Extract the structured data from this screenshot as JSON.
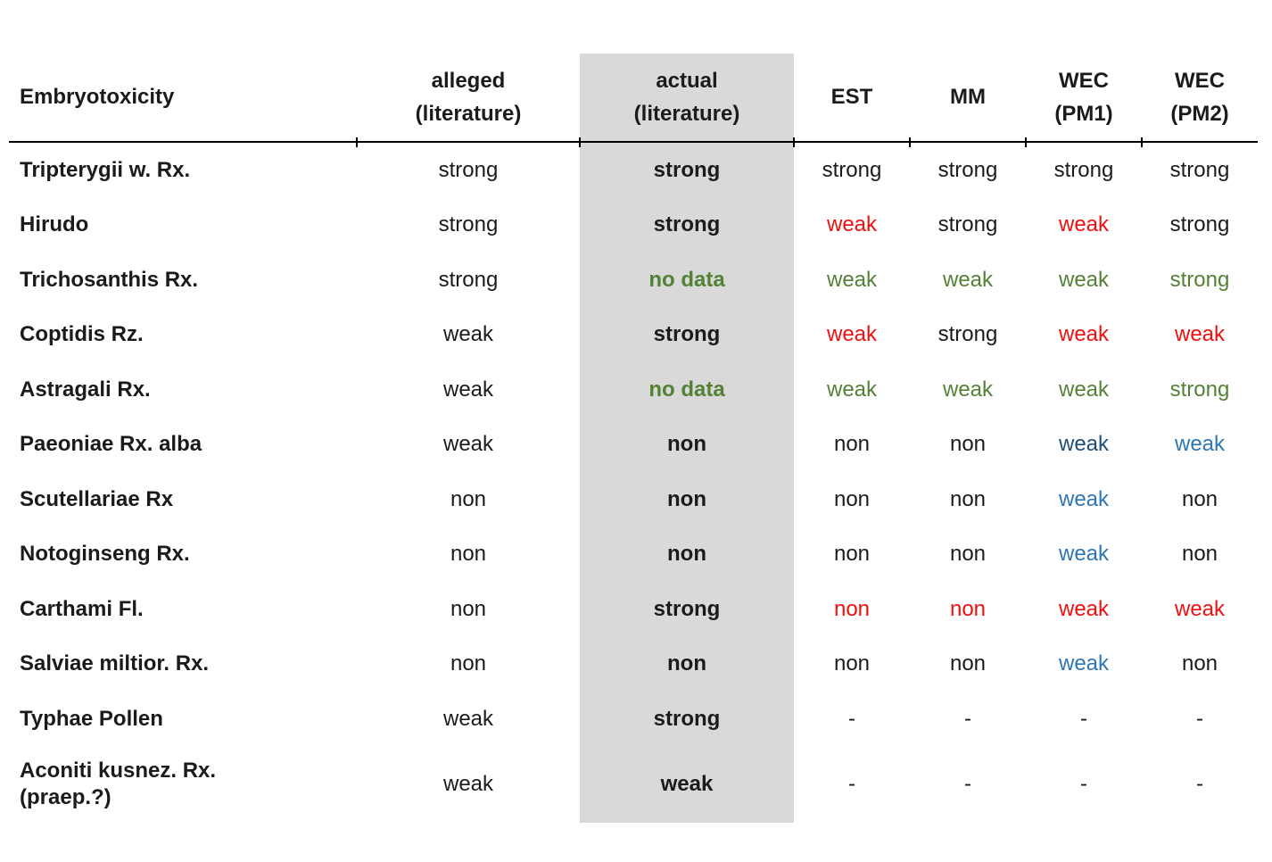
{
  "colors": {
    "black": "#1b1b1b",
    "red": "#f01010",
    "green": "#538135",
    "blue": "#2e75b6",
    "darkblue": "#1f4e79",
    "column_highlight": "#d9d9d9"
  },
  "header": {
    "col_name": "Embryotoxicity",
    "alleged": [
      "alleged",
      "(literature)"
    ],
    "actual": [
      "actual",
      "(literature)"
    ],
    "est": "EST",
    "mm": "MM",
    "wec1": [
      "WEC",
      "(PM1)"
    ],
    "wec2": [
      "WEC",
      "(PM2)"
    ]
  },
  "rows": [
    {
      "name": "Tripterygii w. Rx.",
      "name2": "",
      "alleged": "strong",
      "actual": {
        "t": "strong",
        "c": "black"
      },
      "est": {
        "t": "strong",
        "c": "black"
      },
      "mm": {
        "t": "strong",
        "c": "black"
      },
      "wec1": {
        "t": "strong",
        "c": "black"
      },
      "wec2": {
        "t": "strong",
        "c": "black"
      }
    },
    {
      "name": "Hirudo",
      "name2": "",
      "alleged": "strong",
      "actual": {
        "t": "strong",
        "c": "black"
      },
      "est": {
        "t": "weak",
        "c": "red"
      },
      "mm": {
        "t": "strong",
        "c": "black"
      },
      "wec1": {
        "t": "weak",
        "c": "red"
      },
      "wec2": {
        "t": "strong",
        "c": "black"
      }
    },
    {
      "name": "Trichosanthis Rx.",
      "name2": "",
      "alleged": "strong",
      "actual": {
        "t": "no data",
        "c": "green"
      },
      "est": {
        "t": "weak",
        "c": "green"
      },
      "mm": {
        "t": "weak",
        "c": "green"
      },
      "wec1": {
        "t": "weak",
        "c": "green"
      },
      "wec2": {
        "t": "strong",
        "c": "green"
      }
    },
    {
      "name": "Coptidis Rz.",
      "name2": "",
      "alleged": "weak",
      "actual": {
        "t": "strong",
        "c": "black"
      },
      "est": {
        "t": "weak",
        "c": "red"
      },
      "mm": {
        "t": "strong",
        "c": "black"
      },
      "wec1": {
        "t": "weak",
        "c": "red"
      },
      "wec2": {
        "t": "weak",
        "c": "red"
      }
    },
    {
      "name": "Astragali Rx.",
      "name2": "",
      "alleged": "weak",
      "actual": {
        "t": "no data",
        "c": "green"
      },
      "est": {
        "t": "weak",
        "c": "green"
      },
      "mm": {
        "t": "weak",
        "c": "green"
      },
      "wec1": {
        "t": "weak",
        "c": "green"
      },
      "wec2": {
        "t": "strong",
        "c": "green"
      }
    },
    {
      "name": "Paeoniae Rx. alba",
      "name2": "",
      "alleged": "weak",
      "actual": {
        "t": "non",
        "c": "black"
      },
      "est": {
        "t": "non",
        "c": "black"
      },
      "mm": {
        "t": "non",
        "c": "black"
      },
      "wec1": {
        "t": "weak",
        "c": "darkblue"
      },
      "wec2": {
        "t": "weak",
        "c": "blue"
      }
    },
    {
      "name": "Scutellariae Rx",
      "name2": "",
      "alleged": "non",
      "actual": {
        "t": "non",
        "c": "black"
      },
      "est": {
        "t": "non",
        "c": "black"
      },
      "mm": {
        "t": "non",
        "c": "black"
      },
      "wec1": {
        "t": "weak",
        "c": "blue"
      },
      "wec2": {
        "t": "non",
        "c": "black"
      }
    },
    {
      "name": "Notoginseng Rx.",
      "name2": "",
      "alleged": "non",
      "actual": {
        "t": "non",
        "c": "black"
      },
      "est": {
        "t": "non",
        "c": "black"
      },
      "mm": {
        "t": "non",
        "c": "black"
      },
      "wec1": {
        "t": "weak",
        "c": "blue"
      },
      "wec2": {
        "t": "non",
        "c": "black"
      }
    },
    {
      "name": "Carthami Fl.",
      "name2": "",
      "alleged": "non",
      "actual": {
        "t": "strong",
        "c": "black"
      },
      "est": {
        "t": "non",
        "c": "red"
      },
      "mm": {
        "t": "non",
        "c": "red"
      },
      "wec1": {
        "t": "weak",
        "c": "red"
      },
      "wec2": {
        "t": "weak",
        "c": "red"
      }
    },
    {
      "name": "Salviae miltior. Rx.",
      "name2": "",
      "alleged": "non",
      "actual": {
        "t": "non",
        "c": "black"
      },
      "est": {
        "t": "non",
        "c": "black"
      },
      "mm": {
        "t": "non",
        "c": "black"
      },
      "wec1": {
        "t": "weak",
        "c": "blue"
      },
      "wec2": {
        "t": "non",
        "c": "black"
      }
    },
    {
      "name": "Typhae Pollen",
      "name2": "",
      "alleged": "weak",
      "actual": {
        "t": "strong",
        "c": "black"
      },
      "est": {
        "t": "-",
        "c": "black"
      },
      "mm": {
        "t": "-",
        "c": "black"
      },
      "wec1": {
        "t": "-",
        "c": "black"
      },
      "wec2": {
        "t": "-",
        "c": "black"
      }
    },
    {
      "name": "Aconiti kusnez. Rx.",
      "name2": "(praep.?)",
      "alleged": "weak",
      "actual": {
        "t": "weak",
        "c": "black"
      },
      "est": {
        "t": "-",
        "c": "black"
      },
      "mm": {
        "t": "-",
        "c": "black"
      },
      "wec1": {
        "t": "-",
        "c": "black"
      },
      "wec2": {
        "t": "-",
        "c": "black"
      }
    }
  ]
}
